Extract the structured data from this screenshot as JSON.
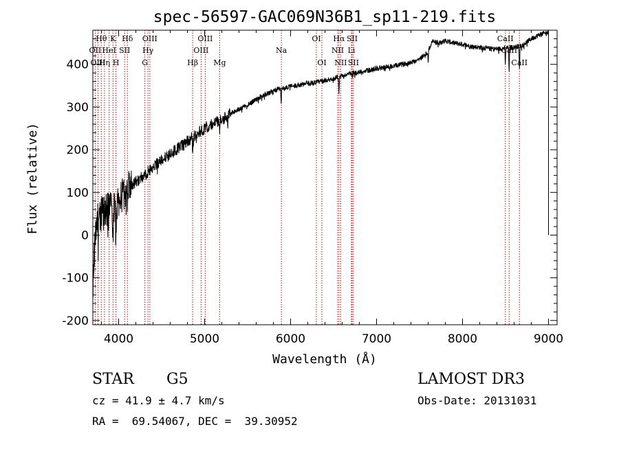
{
  "chart_data": {
    "type": "line",
    "title": "spec-56597-GAC069N36B1_sp11-219.fits",
    "xlabel": "Wavelength (Å)",
    "ylabel": "Flux (relative)",
    "xlim": [
      3700,
      9100
    ],
    "ylim": [
      -210,
      480
    ],
    "xticks": [
      4000,
      5000,
      6000,
      7000,
      8000,
      9000
    ],
    "yticks": [
      -200,
      -100,
      0,
      100,
      200,
      300,
      400
    ],
    "line_color": "#000000",
    "marker_color": "#cc0000",
    "spectrum_nodes": [
      [
        3700,
        -120
      ],
      [
        3720,
        -30
      ],
      [
        3760,
        40
      ],
      [
        3800,
        50
      ],
      [
        3850,
        55
      ],
      [
        3900,
        65
      ],
      [
        3950,
        70
      ],
      [
        4000,
        80
      ],
      [
        4050,
        95
      ],
      [
        4100,
        110
      ],
      [
        4200,
        125
      ],
      [
        4300,
        140
      ],
      [
        4400,
        160
      ],
      [
        4500,
        175
      ],
      [
        4600,
        190
      ],
      [
        4700,
        205
      ],
      [
        4800,
        220
      ],
      [
        4900,
        235
      ],
      [
        5000,
        250
      ],
      [
        5100,
        262
      ],
      [
        5200,
        270
      ],
      [
        5300,
        285
      ],
      [
        5400,
        295
      ],
      [
        5500,
        305
      ],
      [
        5600,
        318
      ],
      [
        5700,
        328
      ],
      [
        5800,
        338
      ],
      [
        5900,
        345
      ],
      [
        6000,
        348
      ],
      [
        6100,
        352
      ],
      [
        6200,
        355
      ],
      [
        6300,
        358
      ],
      [
        6400,
        362
      ],
      [
        6500,
        367
      ],
      [
        6600,
        373
      ],
      [
        6700,
        378
      ],
      [
        6800,
        382
      ],
      [
        6900,
        386
      ],
      [
        7000,
        390
      ],
      [
        7100,
        393
      ],
      [
        7200,
        396
      ],
      [
        7300,
        400
      ],
      [
        7400,
        405
      ],
      [
        7500,
        412
      ],
      [
        7600,
        430
      ],
      [
        7650,
        455
      ],
      [
        7700,
        450
      ],
      [
        7800,
        455
      ],
      [
        7900,
        450
      ],
      [
        8000,
        447
      ],
      [
        8100,
        442
      ],
      [
        8200,
        440
      ],
      [
        8300,
        437
      ],
      [
        8400,
        436
      ],
      [
        8500,
        438
      ],
      [
        8600,
        440
      ],
      [
        8700,
        445
      ],
      [
        8800,
        460
      ],
      [
        8900,
        470
      ],
      [
        9000,
        475
      ]
    ],
    "absorption_dips": [
      [
        3934,
        90
      ],
      [
        3968,
        80
      ],
      [
        4102,
        40
      ],
      [
        4861,
        35
      ],
      [
        5175,
        40
      ],
      [
        5270,
        20
      ],
      [
        5890,
        35
      ],
      [
        6563,
        45
      ],
      [
        8498,
        40
      ],
      [
        8542,
        55
      ],
      [
        8662,
        60
      ],
      [
        7600,
        25
      ]
    ],
    "lines": [
      {
        "label": "Hθ",
        "wavelength": 3798,
        "row": 0
      },
      {
        "label": "OII",
        "wavelength": 3727,
        "row": 1
      },
      {
        "label": "OIII",
        "wavelength": 3760,
        "row": 2
      },
      {
        "label": "K",
        "wavelength": 3934,
        "row": 0
      },
      {
        "label": "HeI",
        "wavelength": 3889,
        "row": 1
      },
      {
        "label": "Hη",
        "wavelength": 3835,
        "row": 2
      },
      {
        "label": "Hδ",
        "wavelength": 4102,
        "row": 0
      },
      {
        "label": "SII",
        "wavelength": 4070,
        "row": 1
      },
      {
        "label": "H",
        "wavelength": 3969,
        "row": 2
      },
      {
        "label": "OIII",
        "wavelength": 4363,
        "row": 0
      },
      {
        "label": "Hγ",
        "wavelength": 4341,
        "row": 1
      },
      {
        "label": "G",
        "wavelength": 4305,
        "row": 2
      },
      {
        "label": "OIII",
        "wavelength": 5007,
        "row": 0
      },
      {
        "label": "OIII",
        "wavelength": 4959,
        "row": 1
      },
      {
        "label": "Hβ",
        "wavelength": 4861,
        "row": 2
      },
      {
        "label": "Mg",
        "wavelength": 5175,
        "row": 2
      },
      {
        "label": "Na",
        "wavelength": 5893,
        "row": 1
      },
      {
        "label": "OI",
        "wavelength": 6300,
        "row": 0
      },
      {
        "label": "OI",
        "wavelength": 6364,
        "row": 2
      },
      {
        "label": "Hα",
        "wavelength": 6563,
        "row": 0
      },
      {
        "label": "SII",
        "wavelength": 6716,
        "row": 0
      },
      {
        "label": "NII",
        "wavelength": 6548,
        "row": 1
      },
      {
        "label": "Li",
        "wavelength": 6708,
        "row": 1
      },
      {
        "label": "NII",
        "wavelength": 6583,
        "row": 2
      },
      {
        "label": "SII",
        "wavelength": 6731,
        "row": 2
      },
      {
        "label": "CaII",
        "wavelength": 8498,
        "row": 0
      },
      {
        "label": "CaII",
        "wavelength": 8542,
        "row": 1
      },
      {
        "label": "CaII",
        "wavelength": 8662,
        "row": 2
      }
    ]
  },
  "info": {
    "class_label": "STAR",
    "subclass": "G5",
    "cz": "cz = 41.9 ± 4.7 km/s",
    "coords": "RA =  69.54067, DEC =  39.30952",
    "survey": "LAMOST DR3",
    "obs_date": "Obs-Date: 20131031"
  }
}
